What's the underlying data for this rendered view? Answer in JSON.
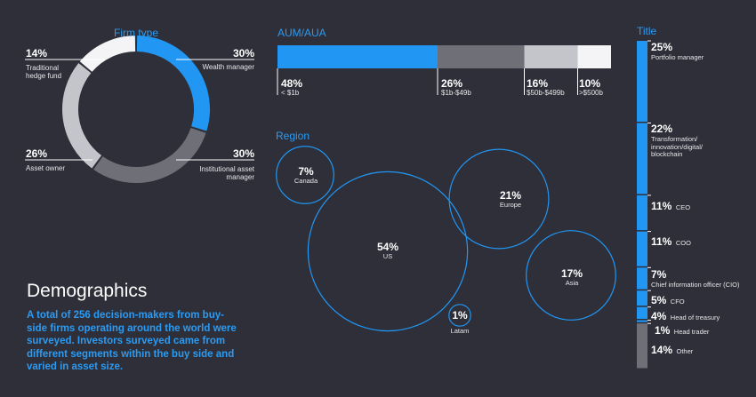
{
  "headline": "Demographics",
  "description": "A total of 256 decision-makers from buy-side firms operating around the world were surveyed. Investors surveyed came from different segments within the buy side and varied in asset size.",
  "colors": {
    "blue": "#2196f3",
    "dark_grey": "#6e6f77",
    "light_grey": "#c4c4cb",
    "white": "#f4f4f6",
    "background": "#2e2f38"
  },
  "chart_data": [
    {
      "type": "pie",
      "title": "Firm type",
      "slices": [
        {
          "label": "Wealth manager",
          "pct": "30%",
          "value": 30
        },
        {
          "label": "Institutional asset manager",
          "pct": "30%",
          "value": 30
        },
        {
          "label": "Asset owner",
          "pct": "26%",
          "value": 26
        },
        {
          "label": "Traditional hedge fund",
          "pct": "14%",
          "value": 14
        }
      ]
    },
    {
      "type": "bar",
      "title": "AUM/AUA",
      "segments": [
        {
          "label": "< $1b",
          "pct": "48%",
          "value": 48
        },
        {
          "label": "$1b-$49b",
          "pct": "26%",
          "value": 26
        },
        {
          "label": "$50b-$499b",
          "pct": "16%",
          "value": 16
        },
        {
          "label": ">$500b",
          "pct": "10%",
          "value": 10
        }
      ]
    },
    {
      "type": "scatter",
      "title": "Region",
      "bubbles": [
        {
          "label": "Canada",
          "pct": "7%",
          "value": 7
        },
        {
          "label": "US",
          "pct": "54%",
          "value": 54
        },
        {
          "label": "Europe",
          "pct": "21%",
          "value": 21
        },
        {
          "label": "Asia",
          "pct": "17%",
          "value": 17
        },
        {
          "label": "Latam",
          "pct": "1%",
          "value": 1
        }
      ]
    },
    {
      "type": "bar",
      "title": "Title",
      "segments": [
        {
          "label": "Portfolio manager",
          "pct": "25%",
          "value": 25
        },
        {
          "label": "Transformation/ innovation/digital/ blockchain",
          "pct": "22%",
          "value": 22
        },
        {
          "label": "CEO",
          "pct": "11%",
          "value": 11
        },
        {
          "label": "COO",
          "pct": "11%",
          "value": 11
        },
        {
          "label": "Chief information officer (CIO)",
          "pct": "7%",
          "value": 7
        },
        {
          "label": "CFO",
          "pct": "5%",
          "value": 5
        },
        {
          "label": "Head of treasury",
          "pct": "4%",
          "value": 4
        },
        {
          "label": "Head trader",
          "pct": "1%",
          "value": 1
        },
        {
          "label": "Other",
          "pct": "14%",
          "value": 14
        }
      ]
    }
  ]
}
